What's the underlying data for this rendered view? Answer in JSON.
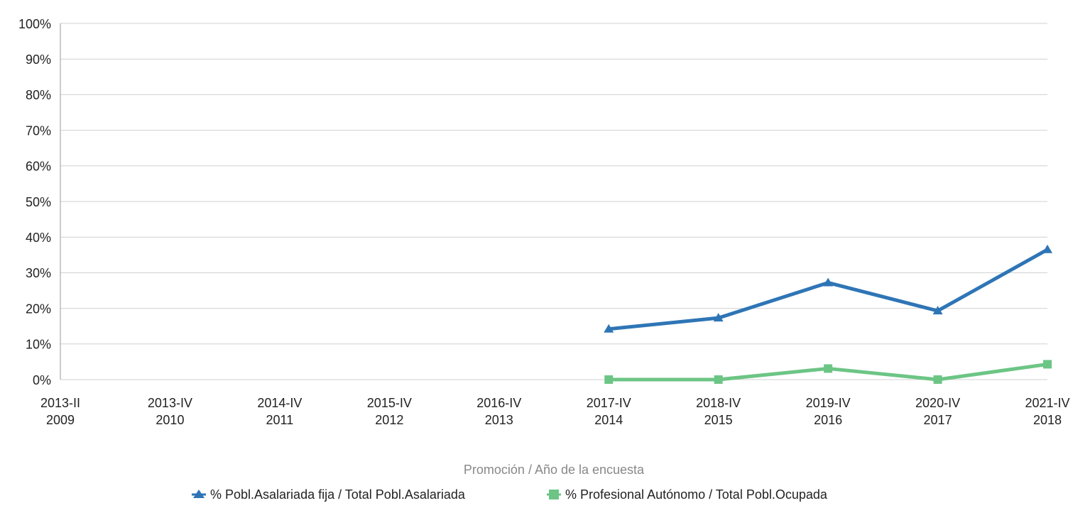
{
  "chart_data": {
    "type": "line",
    "x_label": "Promoción / Año de la encuesta",
    "categories": [
      [
        "2013-II",
        "2009"
      ],
      [
        "2013-IV",
        "2010"
      ],
      [
        "2014-IV",
        "2011"
      ],
      [
        "2015-IV",
        "2012"
      ],
      [
        "2016-IV",
        "2013"
      ],
      [
        "2017-IV",
        "2014"
      ],
      [
        "2018-IV",
        "2015"
      ],
      [
        "2019-IV",
        "2016"
      ],
      [
        "2020-IV",
        "2017"
      ],
      [
        "2021-IV",
        "2018"
      ]
    ],
    "series": [
      {
        "name": "% Pobl.Asalariada fija / Total Pobl.Asalariada",
        "color": "#2e75b6",
        "marker": "triangle",
        "values": [
          null,
          null,
          null,
          null,
          null,
          14.2,
          17.3,
          27.2,
          19.3,
          36.5
        ]
      },
      {
        "name": "% Profesional Autónomo / Total Pobl.Ocupada",
        "color": "#6cc585",
        "marker": "square",
        "values": [
          null,
          null,
          null,
          null,
          null,
          0,
          0,
          3.1,
          0,
          4.3
        ]
      }
    ],
    "ylim": [
      0,
      100
    ],
    "yticks": [
      {
        "value": 0,
        "label": "0%"
      },
      {
        "value": 10,
        "label": "10%"
      },
      {
        "value": 20,
        "label": "20%"
      },
      {
        "value": 30,
        "label": "30%"
      },
      {
        "value": 40,
        "label": "40%"
      },
      {
        "value": 50,
        "label": "50%"
      },
      {
        "value": 60,
        "label": "60%"
      },
      {
        "value": 70,
        "label": "70%"
      },
      {
        "value": 80,
        "label": "80%"
      },
      {
        "value": 90,
        "label": "90%"
      },
      {
        "value": 100,
        "label": "100%"
      }
    ],
    "grid": true,
    "legend": "bottom"
  }
}
